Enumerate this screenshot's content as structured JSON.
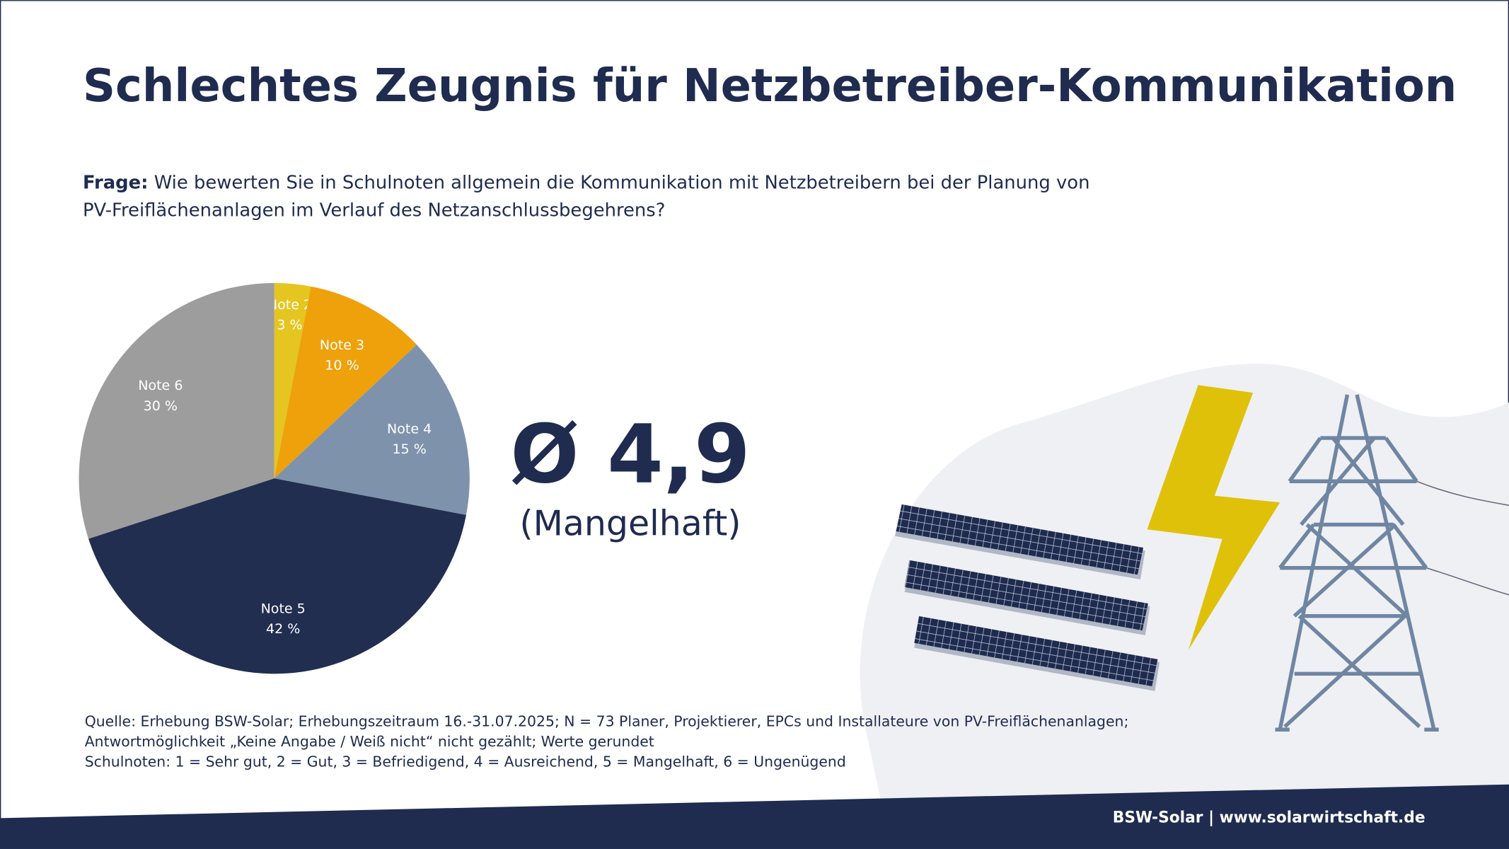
{
  "chart_data": {
    "type": "pie",
    "title": "Schlechtes Zeugnis für Netzbetreiber-Kommunikation",
    "question_label": "Frage:",
    "question": [
      "Wie bewerten Sie in Schulnoten allgemein die Kommunikation mit Netzbetreibern bei der Planung von",
      "PV-Freiflächenanlagen im Verlauf des Netzanschlussbegehrens?"
    ],
    "categories": [
      "Note 2",
      "Note 3",
      "Note 4",
      "Note 5",
      "Note 6"
    ],
    "values": [
      3,
      10,
      15,
      42,
      30
    ],
    "value_labels": [
      "3 %",
      "10 %",
      "15 %",
      "42 %",
      "30 %"
    ],
    "colors": [
      "#e5c51f",
      "#eea10b",
      "#7e92ac",
      "#212e50",
      "#9d9d9d"
    ],
    "annotations": [
      "Ø 4,9",
      "(Mangelhaft)"
    ],
    "notes": [
      "Quelle: Erhebung BSW-Solar; Erhebungszeitraum 16.-31.07.2025; N = 73 Planer, Projektierer, EPCs und Installateure von PV-Freiflächenanlagen;",
      "Antwortmöglichkeit „Keine Angabe / Weiß nicht“ nicht gezählt; Werte gerundet",
      "Schulnoten: 1 = Sehr gut, 2 = Gut, 3 = Befriedigend, 4 = Ausreichend, 5 = Mangelhaft, 6 = Ungenügend"
    ],
    "footer": "BSW-Solar | www.solarwirtschaft.de"
  }
}
